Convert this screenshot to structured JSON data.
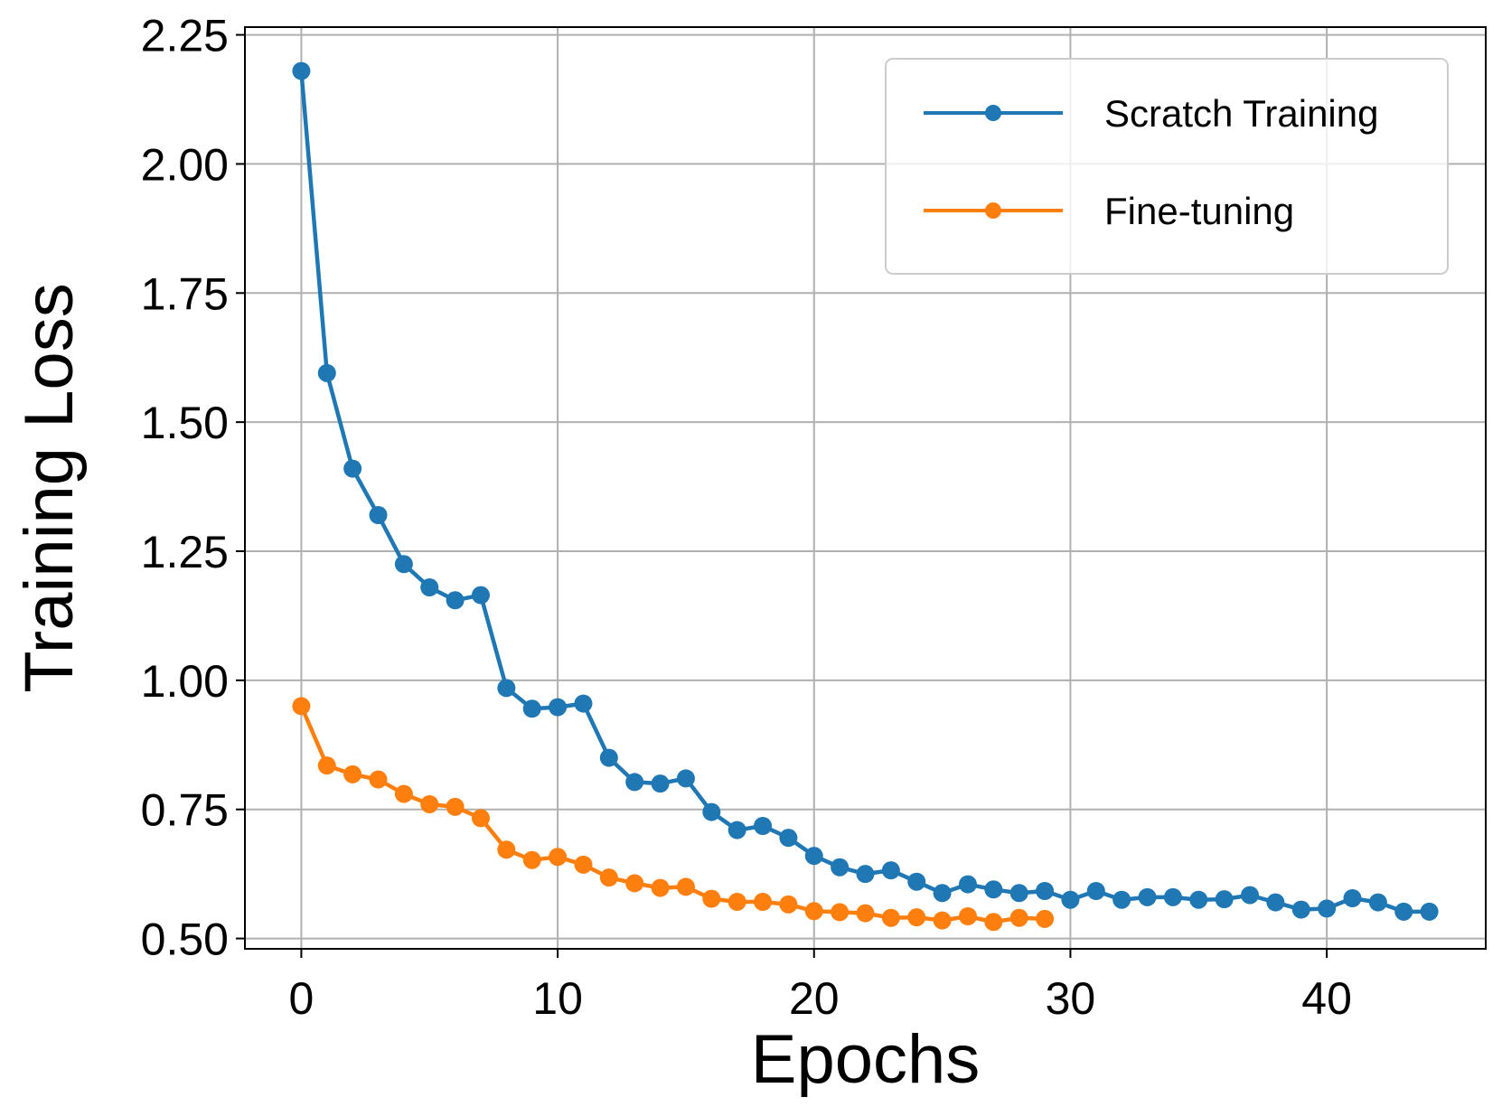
{
  "chart_data": {
    "type": "line",
    "title": "",
    "xlabel": "Epochs",
    "ylabel": "Training Loss",
    "xlim": [
      -2.2,
      46.2
    ],
    "ylim": [
      0.48,
      2.265
    ],
    "xticks": [
      0,
      10,
      20,
      30,
      40
    ],
    "xtick_labels": [
      "0",
      "10",
      "20",
      "30",
      "40"
    ],
    "yticks": [
      0.5,
      0.75,
      1.0,
      1.25,
      1.5,
      1.75,
      2.0,
      2.25
    ],
    "ytick_labels": [
      "0.50",
      "0.75",
      "1.00",
      "1.25",
      "1.50",
      "1.75",
      "2.00",
      "2.25"
    ],
    "grid": true,
    "legend_position": "top-right",
    "series": [
      {
        "name": "Scratch Training",
        "color": "#1f77b4",
        "x": [
          0,
          1,
          2,
          3,
          4,
          5,
          6,
          7,
          8,
          9,
          10,
          11,
          12,
          13,
          14,
          15,
          16,
          17,
          18,
          19,
          20,
          21,
          22,
          23,
          24,
          25,
          26,
          27,
          28,
          29,
          30,
          31,
          32,
          33,
          34,
          35,
          36,
          37,
          38,
          39,
          40,
          41,
          42,
          43,
          44
        ],
        "values": [
          2.18,
          1.595,
          1.41,
          1.32,
          1.225,
          1.18,
          1.155,
          1.165,
          0.985,
          0.945,
          0.948,
          0.955,
          0.85,
          0.803,
          0.8,
          0.81,
          0.745,
          0.71,
          0.718,
          0.695,
          0.66,
          0.638,
          0.625,
          0.632,
          0.61,
          0.588,
          0.605,
          0.595,
          0.588,
          0.592,
          0.575,
          0.592,
          0.575,
          0.58,
          0.58,
          0.575,
          0.576,
          0.584,
          0.57,
          0.556,
          0.558,
          0.578,
          0.57,
          0.552,
          0.552
        ]
      },
      {
        "name": "Fine-tuning",
        "color": "#ff7f0e",
        "x": [
          0,
          1,
          2,
          3,
          4,
          5,
          6,
          7,
          8,
          9,
          10,
          11,
          12,
          13,
          14,
          15,
          16,
          17,
          18,
          19,
          20,
          21,
          22,
          23,
          24,
          25,
          26,
          27,
          28,
          29
        ],
        "values": [
          0.95,
          0.835,
          0.818,
          0.808,
          0.78,
          0.76,
          0.755,
          0.733,
          0.672,
          0.652,
          0.658,
          0.643,
          0.618,
          0.607,
          0.598,
          0.6,
          0.577,
          0.571,
          0.571,
          0.566,
          0.553,
          0.551,
          0.549,
          0.54,
          0.541,
          0.535,
          0.543,
          0.532,
          0.54,
          0.538
        ]
      }
    ]
  }
}
